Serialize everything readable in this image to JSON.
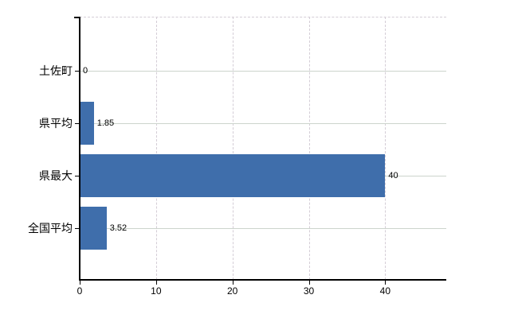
{
  "chart_data": {
    "type": "bar",
    "orientation": "horizontal",
    "title": "",
    "xlabel": "",
    "ylabel": "",
    "categories": [
      "土佐町",
      "県平均",
      "県最大",
      "全国平均"
    ],
    "values": [
      0,
      1.85,
      40,
      3.52
    ],
    "value_labels": [
      "0",
      "1.85",
      "40",
      "3.52"
    ],
    "xlim": [
      0,
      48
    ],
    "x_ticks": [
      0,
      10,
      20,
      30,
      40
    ],
    "x_tick_labels": [
      "0",
      "10",
      "20",
      "30",
      "40"
    ],
    "grid": true,
    "legend": false,
    "colors": {
      "bar": "#3f6eab",
      "category_gridline": "#ccd4cc",
      "value_gridline": "#d4cdd6",
      "plot_top_border": "#d4cdd6",
      "axis": "#000000",
      "text": "#000000",
      "background": "#ffffff"
    }
  }
}
